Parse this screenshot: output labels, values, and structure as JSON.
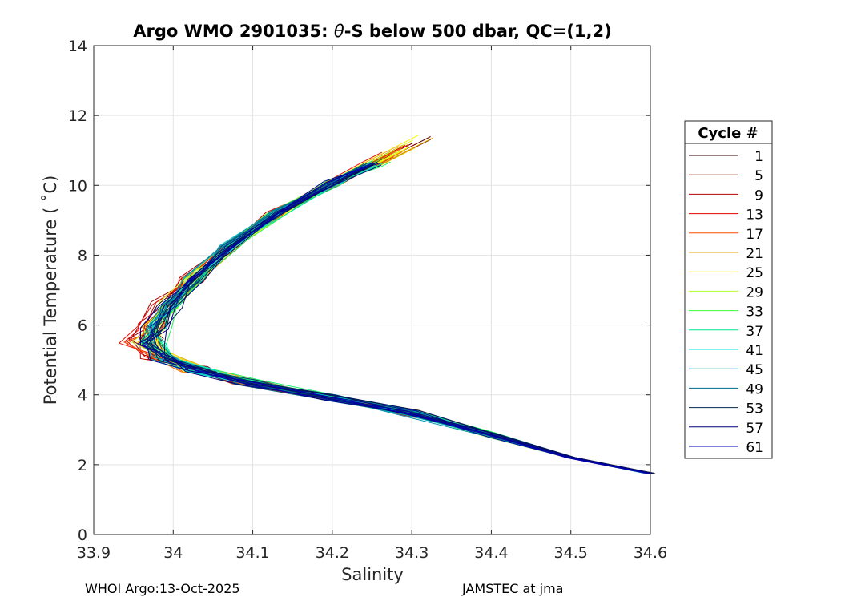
{
  "chart_data": {
    "type": "line",
    "title": "Argo WMO 2901035: θ-S below 500 dbar,  QC=(1,2)",
    "title_prefix": "Argo WMO 2901035: ",
    "title_theta": "θ",
    "title_suffix": "-S below 500 dbar,  QC=(1,2)",
    "xlabel": "Salinity",
    "ylabel": "Potential Temperature ( ˚C)",
    "xlim": [
      33.9,
      34.6
    ],
    "ylim": [
      0,
      14
    ],
    "xticks": [
      33.9,
      34.0,
      34.1,
      34.2,
      34.3,
      34.4,
      34.5,
      34.6
    ],
    "xtick_labels": [
      "33.9",
      "34",
      "34.1",
      "34.2",
      "34.3",
      "34.4",
      "34.5",
      "34.6"
    ],
    "yticks": [
      0,
      2,
      4,
      6,
      8,
      10,
      12,
      14
    ],
    "ytick_labels": [
      "0",
      "2",
      "4",
      "6",
      "8",
      "10",
      "12",
      "14"
    ],
    "grid": true,
    "legend": {
      "title": "Cycle #",
      "location": "outside-right",
      "entries": [
        {
          "label": "1",
          "color": "#330000"
        },
        {
          "label": "5",
          "color": "#7a0000"
        },
        {
          "label": "9",
          "color": "#b30000"
        },
        {
          "label": "13",
          "color": "#e60000"
        },
        {
          "label": "17",
          "color": "#ff4d00"
        },
        {
          "label": "21",
          "color": "#e6a000"
        },
        {
          "label": "25",
          "color": "#ffff00"
        },
        {
          "label": "29",
          "color": "#b3ff33"
        },
        {
          "label": "33",
          "color": "#33ff33"
        },
        {
          "label": "37",
          "color": "#00e68c"
        },
        {
          "label": "41",
          "color": "#00e6e6"
        },
        {
          "label": "45",
          "color": "#00a3b3"
        },
        {
          "label": "49",
          "color": "#00668c"
        },
        {
          "label": "53",
          "color": "#00264d"
        },
        {
          "label": "57",
          "color": "#00007a"
        },
        {
          "label": "61",
          "color": "#0000b3"
        }
      ]
    },
    "series_template": [
      [
        34.6,
        1.75
      ],
      [
        34.5,
        2.2
      ],
      [
        34.4,
        2.85
      ],
      [
        34.3,
        3.5
      ],
      [
        34.2,
        3.95
      ],
      [
        34.1,
        4.4
      ],
      [
        34.04,
        4.75
      ],
      [
        34.0,
        5.1
      ],
      [
        33.985,
        5.55
      ],
      [
        33.99,
        6.0
      ],
      [
        34.005,
        6.6
      ],
      [
        34.03,
        7.3
      ],
      [
        34.07,
        8.2
      ],
      [
        34.13,
        9.2
      ],
      [
        34.2,
        10.05
      ],
      [
        34.25,
        10.6
      ]
    ],
    "series_variation": "each cycle follows the θ-S curve with slight offsets; shallow ends extend to ~34.29–34.34 salinity at 11–12 °C for early cycles"
  },
  "footer": {
    "left": "WHOI Argo:13-Oct-2025",
    "right": "JAMSTEC at jma"
  }
}
